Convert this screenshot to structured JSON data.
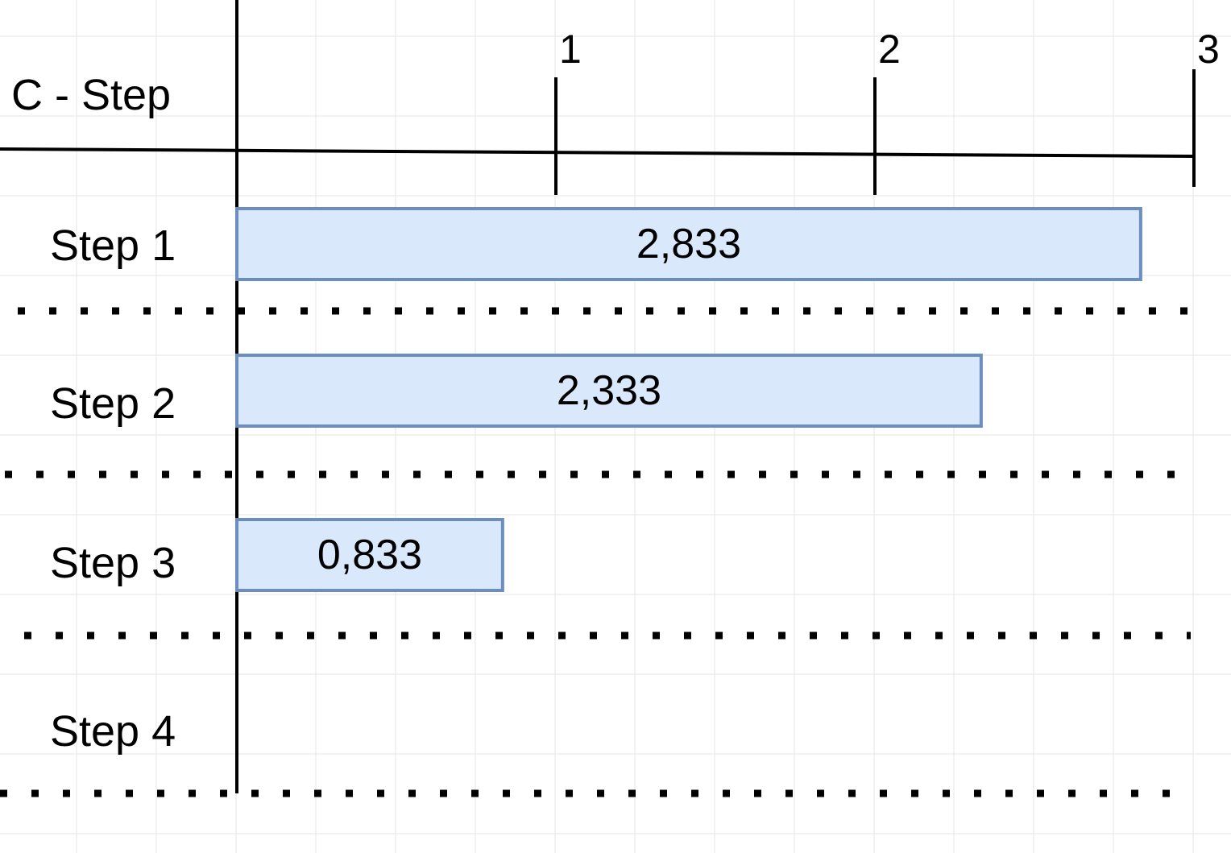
{
  "chart_data": {
    "type": "bar",
    "orientation": "horizontal",
    "corner_label": "C - Step",
    "categories": [
      "Step 1",
      "Step 2",
      "Step 3",
      "Step 4"
    ],
    "values": [
      2.833,
      2.333,
      0.833,
      null
    ],
    "value_labels": [
      "2,833",
      "2,333",
      "0,833",
      ""
    ],
    "x_ticks": [
      1,
      2,
      3
    ],
    "x_tick_labels": [
      "1",
      "2",
      "3"
    ],
    "xlim": [
      0,
      3
    ],
    "grid": true,
    "legend": "none"
  },
  "colors": {
    "bar_fill": "#dae8fc",
    "bar_stroke": "#6c8ebf",
    "grid": "#e6e6e6",
    "axis": "#000000"
  }
}
